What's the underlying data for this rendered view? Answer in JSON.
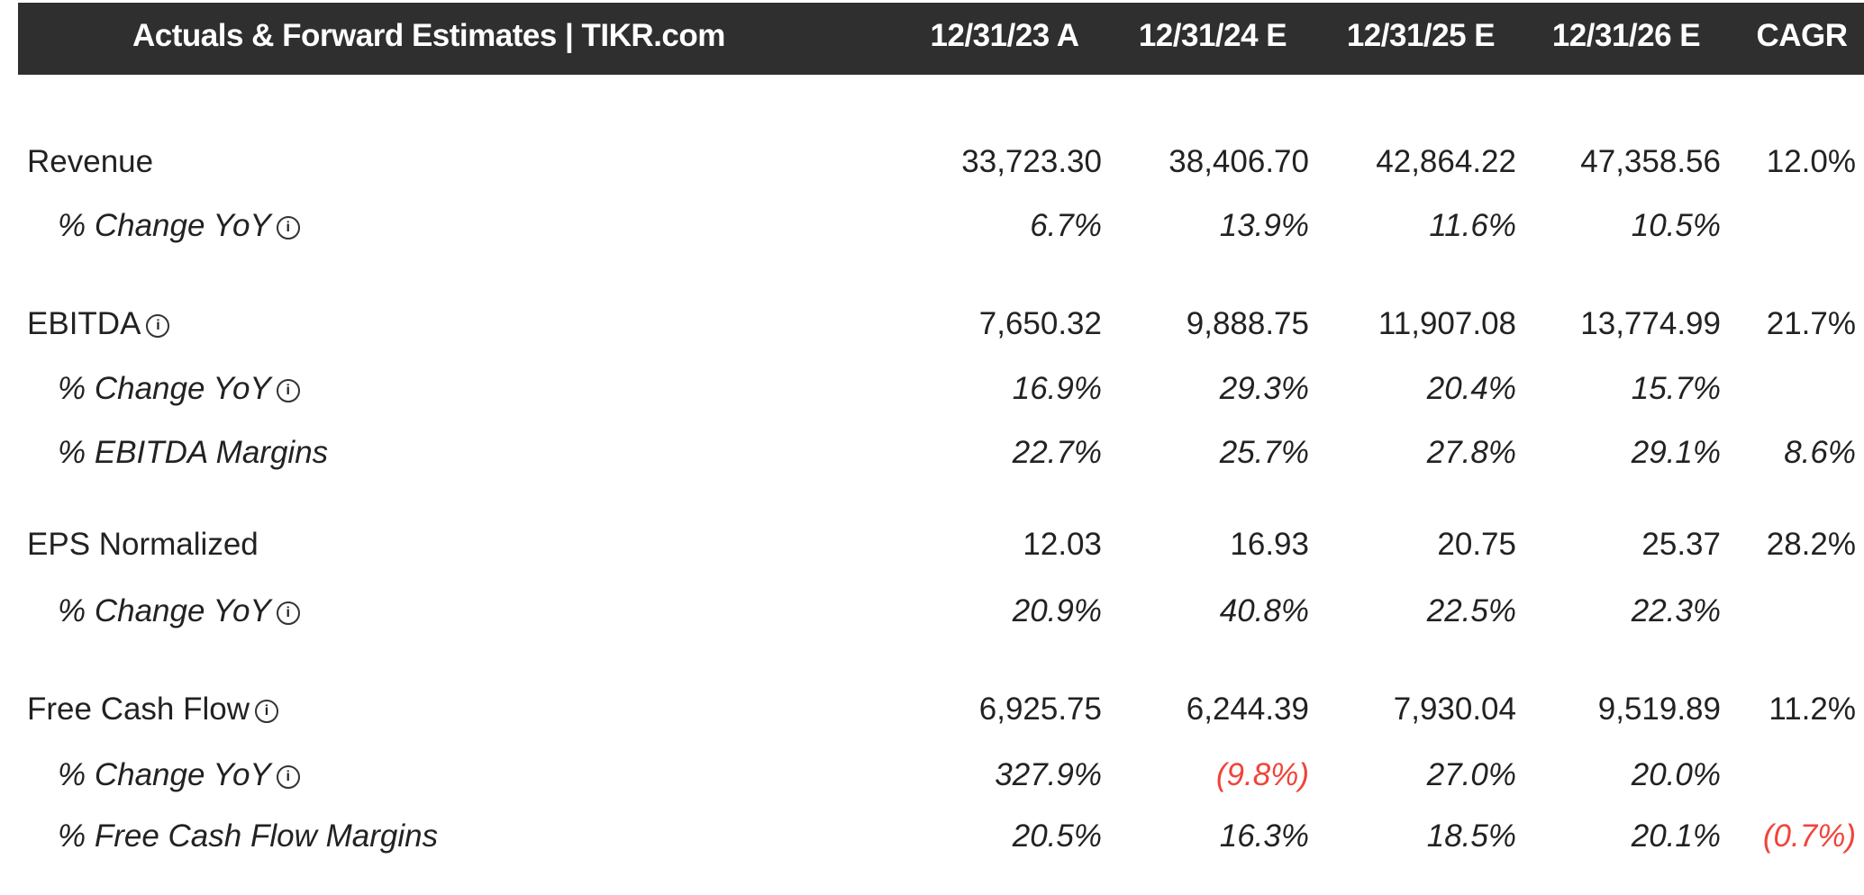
{
  "header": {
    "title": "Actuals & Forward Estimates | TIKR.com",
    "columns": [
      "12/31/23 A",
      "12/31/24 E",
      "12/31/25 E",
      "12/31/26 E",
      "CAGR"
    ]
  },
  "colors": {
    "header_bg": "#2f2f30",
    "negative": "#f0443a"
  },
  "rows": [
    {
      "label": "Revenue",
      "sub": false,
      "info": false,
      "values": [
        "33,723.30",
        "38,406.70",
        "42,864.22",
        "47,358.56",
        "12.0%"
      ]
    },
    {
      "label": "% Change YoY",
      "sub": true,
      "info": true,
      "values": [
        "6.7%",
        "13.9%",
        "11.6%",
        "10.5%",
        ""
      ]
    },
    {
      "label": "EBITDA",
      "sub": false,
      "info": true,
      "values": [
        "7,650.32",
        "9,888.75",
        "11,907.08",
        "13,774.99",
        "21.7%"
      ]
    },
    {
      "label": "% Change YoY",
      "sub": true,
      "info": true,
      "values": [
        "16.9%",
        "29.3%",
        "20.4%",
        "15.7%",
        ""
      ]
    },
    {
      "label": "% EBITDA Margins",
      "sub": true,
      "info": false,
      "values": [
        "22.7%",
        "25.7%",
        "27.8%",
        "29.1%",
        "8.6%"
      ]
    },
    {
      "label": "EPS Normalized",
      "sub": false,
      "info": false,
      "values": [
        "12.03",
        "16.93",
        "20.75",
        "25.37",
        "28.2%"
      ]
    },
    {
      "label": "% Change YoY",
      "sub": true,
      "info": true,
      "values": [
        "20.9%",
        "40.8%",
        "22.5%",
        "22.3%",
        ""
      ]
    },
    {
      "label": "Free Cash Flow",
      "sub": false,
      "info": true,
      "values": [
        "6,925.75",
        "6,244.39",
        "7,930.04",
        "9,519.89",
        "11.2%"
      ]
    },
    {
      "label": "% Change YoY",
      "sub": true,
      "info": true,
      "values": [
        "327.9%",
        "(9.8%)",
        "27.0%",
        "20.0%",
        ""
      ]
    },
    {
      "label": "% Free Cash Flow Margins",
      "sub": true,
      "info": false,
      "values": [
        "20.5%",
        "16.3%",
        "18.5%",
        "20.1%",
        "(0.7%)"
      ]
    }
  ]
}
